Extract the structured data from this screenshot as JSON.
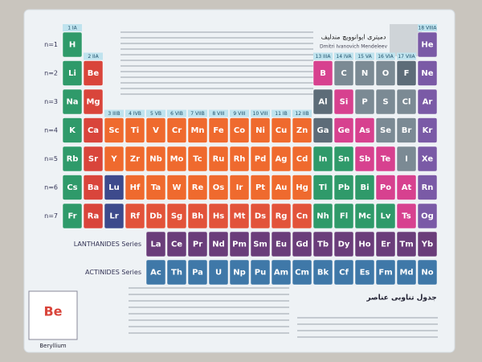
{
  "title_fa": "دمیتری ایوانوویچ مندلیف",
  "title_en": "Dmitri Ivanovich Mendeleev",
  "footer_title": "جدول تناوبی عناصر",
  "groups": [
    "1 IA",
    "2 IIA",
    "3 IIIB",
    "4 IVB",
    "5 VB",
    "6 VIB",
    "7 VIIB",
    "8 VIII",
    "9 VIII",
    "10 VIII",
    "11 IB",
    "12 IIB",
    "13 IIIA",
    "14 IVA",
    "15 VA",
    "16 VIA",
    "17 VIIA",
    "18 VIIIA"
  ],
  "periods": [
    {
      "label": "n=1",
      "cells": [
        {
          "symbol": "H",
          "color": "#2f9a6a"
        },
        null,
        null,
        null,
        null,
        null,
        null,
        null,
        null,
        null,
        null,
        null,
        null,
        null,
        null,
        null,
        null,
        {
          "symbol": "He",
          "color": "#7a5aa6"
        }
      ]
    },
    {
      "label": "n=2",
      "cells": [
        {
          "symbol": "Li",
          "color": "#2f9a6a"
        },
        {
          "symbol": "Be",
          "color": "#d9453b"
        },
        null,
        null,
        null,
        null,
        null,
        null,
        null,
        null,
        null,
        null,
        {
          "symbol": "B",
          "color": "#d7418f"
        },
        {
          "symbol": "C",
          "color": "#7b8a94"
        },
        {
          "symbol": "N",
          "color": "#7b8a94"
        },
        {
          "symbol": "O",
          "color": "#7b8a94"
        },
        {
          "symbol": "F",
          "color": "#5d6c78"
        },
        {
          "symbol": "Ne",
          "color": "#7a5aa6"
        }
      ]
    },
    {
      "label": "n=3",
      "cells": [
        {
          "symbol": "Na",
          "color": "#2f9a6a"
        },
        {
          "symbol": "Mg",
          "color": "#d9453b"
        },
        null,
        null,
        null,
        null,
        null,
        null,
        null,
        null,
        null,
        null,
        {
          "symbol": "Al",
          "color": "#5d6c78"
        },
        {
          "symbol": "Si",
          "color": "#d7418f"
        },
        {
          "symbol": "P",
          "color": "#7b8a94"
        },
        {
          "symbol": "S",
          "color": "#7b8a94"
        },
        {
          "symbol": "Cl",
          "color": "#7b8a94"
        },
        {
          "symbol": "Ar",
          "color": "#7a5aa6"
        }
      ]
    },
    {
      "label": "n=4",
      "cells": [
        {
          "symbol": "K",
          "color": "#2f9a6a"
        },
        {
          "symbol": "Ca",
          "color": "#d9453b"
        },
        {
          "symbol": "Sc",
          "color": "#ef6a2e"
        },
        {
          "symbol": "Ti",
          "color": "#ef6a2e"
        },
        {
          "symbol": "V",
          "color": "#ef6a2e"
        },
        {
          "symbol": "Cr",
          "color": "#ef6a2e"
        },
        {
          "symbol": "Mn",
          "color": "#ef6a2e"
        },
        {
          "symbol": "Fe",
          "color": "#ef6a2e"
        },
        {
          "symbol": "Co",
          "color": "#ef6a2e"
        },
        {
          "symbol": "Ni",
          "color": "#ef6a2e"
        },
        {
          "symbol": "Cu",
          "color": "#ef6a2e"
        },
        {
          "symbol": "Zn",
          "color": "#ef6a2e"
        },
        {
          "symbol": "Ga",
          "color": "#5d6c78"
        },
        {
          "symbol": "Ge",
          "color": "#d7418f"
        },
        {
          "symbol": "As",
          "color": "#d7418f"
        },
        {
          "symbol": "Se",
          "color": "#7b8a94"
        },
        {
          "symbol": "Br",
          "color": "#7b8a94"
        },
        {
          "symbol": "Kr",
          "color": "#7a5aa6"
        }
      ]
    },
    {
      "label": "n=5",
      "cells": [
        {
          "symbol": "Rb",
          "color": "#2f9a6a"
        },
        {
          "symbol": "Sr",
          "color": "#d9453b"
        },
        {
          "symbol": "Y",
          "color": "#ef6a2e"
        },
        {
          "symbol": "Zr",
          "color": "#ef6a2e"
        },
        {
          "symbol": "Nb",
          "color": "#ef6a2e"
        },
        {
          "symbol": "Mo",
          "color": "#ef6a2e"
        },
        {
          "symbol": "Tc",
          "color": "#ef6a2e"
        },
        {
          "symbol": "Ru",
          "color": "#ef6a2e"
        },
        {
          "symbol": "Rh",
          "color": "#ef6a2e"
        },
        {
          "symbol": "Pd",
          "color": "#ef6a2e"
        },
        {
          "symbol": "Ag",
          "color": "#ef6a2e"
        },
        {
          "symbol": "Cd",
          "color": "#ef6a2e"
        },
        {
          "symbol": "In",
          "color": "#2f9a6a"
        },
        {
          "symbol": "Sn",
          "color": "#2f9a6a"
        },
        {
          "symbol": "Sb",
          "color": "#d7418f"
        },
        {
          "symbol": "Te",
          "color": "#d7418f"
        },
        {
          "symbol": "I",
          "color": "#7b8a94"
        },
        {
          "symbol": "Xe",
          "color": "#7a5aa6"
        }
      ]
    },
    {
      "label": "n=6",
      "cells": [
        {
          "symbol": "Cs",
          "color": "#2f9a6a"
        },
        {
          "symbol": "Ba",
          "color": "#d9453b"
        },
        {
          "symbol": "Lu",
          "color": "#3d4a8c"
        },
        {
          "symbol": "Hf",
          "color": "#ef6a2e"
        },
        {
          "symbol": "Ta",
          "color": "#ef6a2e"
        },
        {
          "symbol": "W",
          "color": "#ef6a2e"
        },
        {
          "symbol": "Re",
          "color": "#ef6a2e"
        },
        {
          "symbol": "Os",
          "color": "#ef6a2e"
        },
        {
          "symbol": "Ir",
          "color": "#ef6a2e"
        },
        {
          "symbol": "Pt",
          "color": "#ef6a2e"
        },
        {
          "symbol": "Au",
          "color": "#ef6a2e"
        },
        {
          "symbol": "Hg",
          "color": "#ef6a2e"
        },
        {
          "symbol": "Tl",
          "color": "#2f9a6a"
        },
        {
          "symbol": "Pb",
          "color": "#2f9a6a"
        },
        {
          "symbol": "Bi",
          "color": "#2f9a6a"
        },
        {
          "symbol": "Po",
          "color": "#d7418f"
        },
        {
          "symbol": "At",
          "color": "#d7418f"
        },
        {
          "symbol": "Rn",
          "color": "#7a5aa6"
        }
      ]
    },
    {
      "label": "n=7",
      "cells": [
        {
          "symbol": "Fr",
          "color": "#2f9a6a"
        },
        {
          "symbol": "Ra",
          "color": "#d9453b"
        },
        {
          "symbol": "Lr",
          "color": "#3d4a8c"
        },
        {
          "symbol": "Rf",
          "color": "#e2533a"
        },
        {
          "symbol": "Db",
          "color": "#e2533a"
        },
        {
          "symbol": "Sg",
          "color": "#e2533a"
        },
        {
          "symbol": "Bh",
          "color": "#e2533a"
        },
        {
          "symbol": "Hs",
          "color": "#e2533a"
        },
        {
          "symbol": "Mt",
          "color": "#e2533a"
        },
        {
          "symbol": "Ds",
          "color": "#e2533a"
        },
        {
          "symbol": "Rg",
          "color": "#e2533a"
        },
        {
          "symbol": "Cn",
          "color": "#e2533a"
        },
        {
          "symbol": "Nh",
          "color": "#2f9a6a"
        },
        {
          "symbol": "Fl",
          "color": "#2f9a6a"
        },
        {
          "symbol": "Mc",
          "color": "#2f9a6a"
        },
        {
          "symbol": "Lv",
          "color": "#2f9a6a"
        },
        {
          "symbol": "Ts",
          "color": "#d7418f"
        },
        {
          "symbol": "Og",
          "color": "#7a5aa6"
        }
      ]
    }
  ],
  "series_rows": [
    {
      "label": "LANTHANIDES Series",
      "cells": [
        {
          "symbol": "La",
          "color": "#6a3d7a"
        },
        {
          "symbol": "Ce",
          "color": "#6a3d7a"
        },
        {
          "symbol": "Pr",
          "color": "#6a3d7a"
        },
        {
          "symbol": "Nd",
          "color": "#6a3d7a"
        },
        {
          "symbol": "Pm",
          "color": "#6a3d7a"
        },
        {
          "symbol": "Sm",
          "color": "#6a3d7a"
        },
        {
          "symbol": "Eu",
          "color": "#6a3d7a"
        },
        {
          "symbol": "Gd",
          "color": "#6a3d7a"
        },
        {
          "symbol": "Tb",
          "color": "#6a3d7a"
        },
        {
          "symbol": "Dy",
          "color": "#6a3d7a"
        },
        {
          "symbol": "Ho",
          "color": "#6a3d7a"
        },
        {
          "symbol": "Er",
          "color": "#6a3d7a"
        },
        {
          "symbol": "Tm",
          "color": "#6a3d7a"
        },
        {
          "symbol": "Yb",
          "color": "#6a3d7a"
        }
      ]
    },
    {
      "label": "ACTINIDES Series",
      "cells": [
        {
          "symbol": "Ac",
          "color": "#3f78a8"
        },
        {
          "symbol": "Th",
          "color": "#3f78a8"
        },
        {
          "symbol": "Pa",
          "color": "#3f78a8"
        },
        {
          "symbol": "U",
          "color": "#3f78a8"
        },
        {
          "symbol": "Np",
          "color": "#3f78a8"
        },
        {
          "symbol": "Pu",
          "color": "#3f78a8"
        },
        {
          "symbol": "Am",
          "color": "#3f78a8"
        },
        {
          "symbol": "Cm",
          "color": "#3f78a8"
        },
        {
          "symbol": "Bk",
          "color": "#3f78a8"
        },
        {
          "symbol": "Cf",
          "color": "#3f78a8"
        },
        {
          "symbol": "Es",
          "color": "#3f78a8"
        },
        {
          "symbol": "Fm",
          "color": "#3f78a8"
        },
        {
          "symbol": "Md",
          "color": "#3f78a8"
        },
        {
          "symbol": "No",
          "color": "#3f78a8"
        }
      ]
    }
  ],
  "key": {
    "symbol": "Be",
    "name": "Beryllium"
  }
}
